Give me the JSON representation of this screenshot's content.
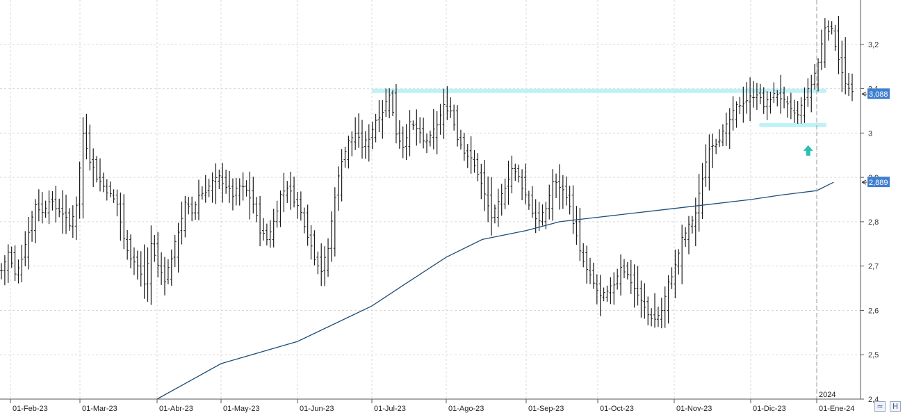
{
  "chart_data": {
    "type": "ohlc",
    "x_ticks": [
      "01-Feb-23",
      "01-Mar-23",
      "01-Abr-23",
      "01-May-23",
      "01-Jun-23",
      "01-Jul-23",
      "01-Ago-23",
      "01-Sep-23",
      "01-Oct-23",
      "01-Nov-23",
      "01-Dic-23",
      "01-Ene-24"
    ],
    "year_marker": "2024",
    "y_ticks": [
      "2,4",
      "2,5",
      "2,6",
      "2,7",
      "2,8",
      "2,9",
      "3",
      "3,1",
      "3,2"
    ],
    "ylim": [
      2.4,
      3.3
    ],
    "grid": true,
    "price_badge": {
      "label": "3,088",
      "value": 3.088,
      "color": "#3f7fcf"
    },
    "ma_badge": {
      "label": "2,889",
      "value": 2.889,
      "color": "#3f7fcf"
    },
    "moving_average": {
      "color": "#1f4e79",
      "points": [
        [
          "01-Abr-23",
          2.4
        ],
        [
          "01-May-23",
          2.48
        ],
        [
          "01-Jun-23",
          2.53
        ],
        [
          "01-Jul-23",
          2.61
        ],
        [
          "15-Jul-23",
          2.66
        ],
        [
          "01-Ago-23",
          2.72
        ],
        [
          "15-Ago-23",
          2.76
        ],
        [
          "01-Sep-23",
          2.78
        ],
        [
          "15-Sep-23",
          2.8
        ],
        [
          "01-Oct-23",
          2.81
        ],
        [
          "01-Nov-23",
          2.83
        ],
        [
          "01-Dic-23",
          2.85
        ],
        [
          "15-Dic-23",
          2.86
        ],
        [
          "01-Ene-24",
          2.87
        ],
        [
          "08-Ene-24",
          2.889
        ]
      ]
    },
    "resistance_zone": {
      "value": 3.095,
      "from": "01-Jul-23",
      "to": "05-Ene-24",
      "color": "#bff2f6"
    },
    "support_zone": {
      "value": 3.018,
      "from": "05-Dic-23",
      "to": "05-Ene-24",
      "color": "#bff2f6"
    },
    "signal_arrow": {
      "date": "28-Dic-23",
      "value": 2.96,
      "color": "#2bbfb0",
      "direction": "up"
    },
    "path": [
      2.69,
      2.73,
      2.68,
      2.72,
      2.78,
      2.84,
      2.82,
      2.85,
      2.83,
      2.82,
      2.79,
      2.84,
      3.0,
      2.94,
      2.9,
      2.88,
      2.86,
      2.84,
      2.76,
      2.72,
      2.7,
      2.66,
      2.75,
      2.7,
      2.67,
      2.72,
      2.78,
      2.84,
      2.82,
      2.86,
      2.87,
      2.89,
      2.9,
      2.88,
      2.86,
      2.88,
      2.87,
      2.84,
      2.78,
      2.76,
      2.8,
      2.86,
      2.88,
      2.85,
      2.82,
      2.77,
      2.72,
      2.69,
      2.74,
      2.86,
      2.94,
      2.98,
      3.0,
      2.97,
      2.99,
      3.03,
      3.05,
      3.09,
      3.0,
      2.97,
      3.02,
      3.01,
      2.98,
      2.99,
      3.02,
      3.06,
      3.05,
      2.99,
      2.96,
      2.94,
      2.91,
      2.86,
      2.81,
      2.84,
      2.88,
      2.92,
      2.9,
      2.86,
      2.82,
      2.8,
      2.83,
      2.89,
      2.88,
      2.86,
      2.8,
      2.73,
      2.69,
      2.66,
      2.63,
      2.64,
      2.66,
      2.7,
      2.68,
      2.65,
      2.62,
      2.59,
      2.58,
      2.6,
      2.66,
      2.7,
      2.76,
      2.79,
      2.82,
      2.9,
      2.97,
      2.98,
      3.0,
      3.03,
      3.06,
      3.07,
      3.08,
      3.09,
      3.06,
      3.08,
      3.09,
      3.07,
      3.05,
      3.04,
      3.08,
      3.11,
      3.16,
      3.24,
      3.23,
      3.17,
      3.11,
      3.088
    ]
  }
}
